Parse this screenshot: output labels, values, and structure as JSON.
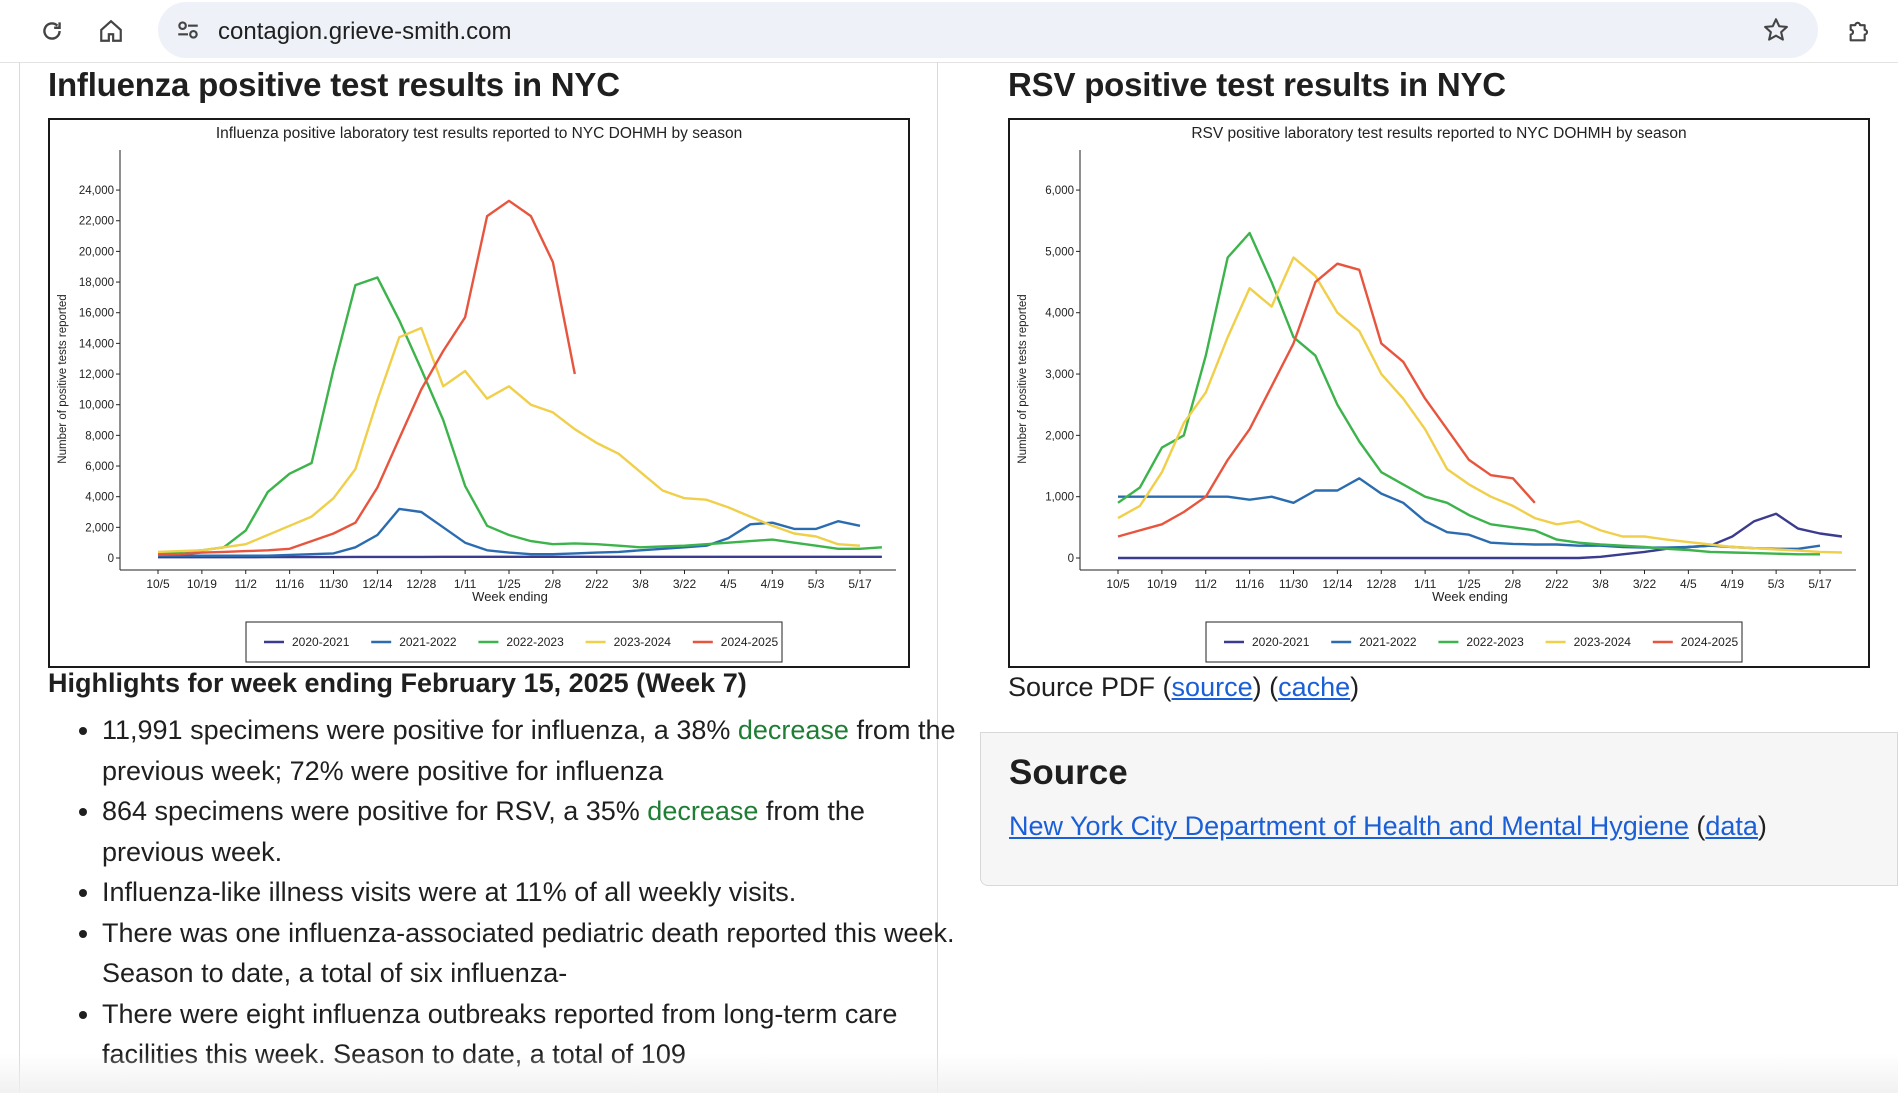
{
  "browser": {
    "url": "contagion.grieve-smith.com"
  },
  "flu": {
    "heading": "Influenza positive test results in NYC",
    "highlights_title": "Highlights for week ending February 15, 2025 (Week 7)",
    "bullets": [
      {
        "pre": "11,991 specimens were positive for influenza, a 38% ",
        "word": "decrease",
        "post": " from the previous week; 72% were positive for influenza"
      },
      {
        "pre": "864 specimens were positive for RSV, a 35% ",
        "word": "decrease",
        "post": " from the previous week."
      },
      {
        "pre": "Influenza-like illness visits were at 11% of all weekly visits.",
        "word": "",
        "post": ""
      },
      {
        "pre": "There was one influenza-associated pediatric death reported this week. Season to date, a total of six influenza-",
        "word": "",
        "post": ""
      },
      {
        "pre": "There were eight influenza outbreaks reported from long-term care facilities this week. Season to date, a total of 109",
        "word": "",
        "post": ""
      }
    ]
  },
  "rsv": {
    "heading": "RSV positive test results in NYC",
    "source_pdf_label": "Source PDF (",
    "source_link": "source",
    "mid": ") (",
    "cache_link": "cache",
    "end": ")"
  },
  "source_panel": {
    "title": "Source",
    "link": "New York City Department of Health and Mental Hygiene",
    "open": " (",
    "data_link": "data",
    "close": ")"
  },
  "chart_data": [
    {
      "type": "line",
      "title": "Influenza positive laboratory test results reported to NYC DOHMH by season",
      "xlabel": "Week ending",
      "ylabel": "Number of positive tests reported",
      "ylim": [
        0,
        24000
      ],
      "yticks": [
        0,
        2000,
        4000,
        6000,
        8000,
        10000,
        12000,
        14000,
        16000,
        18000,
        20000,
        22000,
        24000
      ],
      "x_tick_labels": [
        "10/5",
        "10/19",
        "11/2",
        "11/16",
        "11/30",
        "12/14",
        "12/28",
        "1/11",
        "1/25",
        "2/8",
        "2/22",
        "3/8",
        "3/22",
        "4/5",
        "4/19",
        "5/3",
        "5/17"
      ],
      "legend": "bottom",
      "series": [
        {
          "name": "2020-2021",
          "color": "#3b3b8f",
          "values": [
            50,
            50,
            50,
            50,
            50,
            60,
            60,
            60,
            60,
            70,
            70,
            70,
            70,
            80,
            80,
            80,
            80,
            80,
            80,
            80,
            80,
            80,
            80,
            80,
            80,
            80,
            80,
            80,
            80,
            80,
            80,
            80,
            80,
            80
          ]
        },
        {
          "name": "2021-2022",
          "color": "#2b6cb0",
          "values": [
            150,
            150,
            150,
            150,
            150,
            150,
            200,
            250,
            300,
            700,
            1500,
            3200,
            3000,
            2000,
            1000,
            500,
            350,
            250,
            250,
            300,
            350,
            400,
            500,
            600,
            700,
            800,
            1300,
            2200,
            2300,
            1900,
            1900,
            2400,
            2100
          ]
        },
        {
          "name": "2022-2023",
          "color": "#3cb44b",
          "values": [
            300,
            400,
            500,
            700,
            1800,
            4300,
            5500,
            6200,
            12300,
            17800,
            18300,
            15500,
            12300,
            9000,
            4700,
            2100,
            1500,
            1100,
            900,
            950,
            900,
            800,
            700,
            750,
            800,
            900,
            1000,
            1100,
            1200,
            1000,
            800,
            600,
            600,
            700
          ]
        },
        {
          "name": "2023-2024",
          "color": "#f0cf4a",
          "values": [
            400,
            450,
            500,
            700,
            900,
            1500,
            2100,
            2700,
            3900,
            5800,
            10300,
            14400,
            15000,
            11200,
            12200,
            10400,
            11200,
            10000,
            9500,
            8400,
            7500,
            6800,
            5600,
            4400,
            3900,
            3800,
            3300,
            2700,
            2100,
            1600,
            1400,
            900,
            800
          ]
        },
        {
          "name": "2024-2025",
          "color": "#e8553e",
          "values": [
            200,
            250,
            350,
            400,
            450,
            500,
            600,
            1100,
            1600,
            2300,
            4600,
            7800,
            11000,
            13500,
            15700,
            22300,
            23300,
            22300,
            19300,
            12000
          ]
        }
      ]
    },
    {
      "type": "line",
      "title": "RSV positive laboratory test results reported to NYC DOHMH by season",
      "xlabel": "Week ending",
      "ylabel": "Number of positive tests reported",
      "ylim": [
        0,
        6000
      ],
      "yticks": [
        0,
        1000,
        2000,
        3000,
        4000,
        5000,
        6000
      ],
      "x_tick_labels": [
        "10/5",
        "10/19",
        "11/2",
        "11/16",
        "11/30",
        "12/14",
        "12/28",
        "1/11",
        "1/25",
        "2/8",
        "2/22",
        "3/8",
        "3/22",
        "4/5",
        "4/19",
        "5/3",
        "5/17"
      ],
      "legend": "bottom",
      "series": [
        {
          "name": "2020-2021",
          "color": "#3b3b8f",
          "values": [
            0,
            0,
            0,
            0,
            0,
            0,
            0,
            0,
            0,
            0,
            0,
            0,
            0,
            0,
            0,
            0,
            0,
            0,
            0,
            0,
            0,
            0,
            20,
            60,
            100,
            150,
            180,
            200,
            350,
            600,
            720,
            480,
            400,
            350
          ]
        },
        {
          "name": "2021-2022",
          "color": "#2b6cb0",
          "values": [
            1000,
            1000,
            1000,
            1000,
            1000,
            1000,
            950,
            1000,
            900,
            1100,
            1100,
            1300,
            1050,
            900,
            600,
            420,
            380,
            250,
            230,
            220,
            220,
            200,
            200,
            180,
            170,
            170,
            180,
            200,
            180,
            160,
            150,
            150,
            200
          ]
        },
        {
          "name": "2022-2023",
          "color": "#3cb44b",
          "values": [
            900,
            1150,
            1800,
            2000,
            3300,
            4900,
            5300,
            4500,
            3600,
            3300,
            2500,
            1900,
            1400,
            1200,
            1000,
            900,
            700,
            550,
            500,
            450,
            300,
            250,
            220,
            200,
            180,
            150,
            130,
            100,
            90,
            80,
            70,
            60,
            60
          ]
        },
        {
          "name": "2023-2024",
          "color": "#f0cf4a",
          "values": [
            650,
            850,
            1400,
            2200,
            2700,
            3600,
            4400,
            4100,
            4900,
            4600,
            4000,
            3700,
            3000,
            2600,
            2100,
            1450,
            1200,
            1000,
            850,
            650,
            550,
            600,
            450,
            350,
            350,
            300,
            260,
            220,
            180,
            160,
            140,
            120,
            100,
            90
          ]
        },
        {
          "name": "2024-2025",
          "color": "#e8553e",
          "values": [
            350,
            450,
            550,
            750,
            1000,
            1600,
            2100,
            2800,
            3500,
            4500,
            4800,
            4700,
            3500,
            3200,
            2600,
            2100,
            1600,
            1350,
            1300,
            900
          ]
        }
      ]
    }
  ]
}
